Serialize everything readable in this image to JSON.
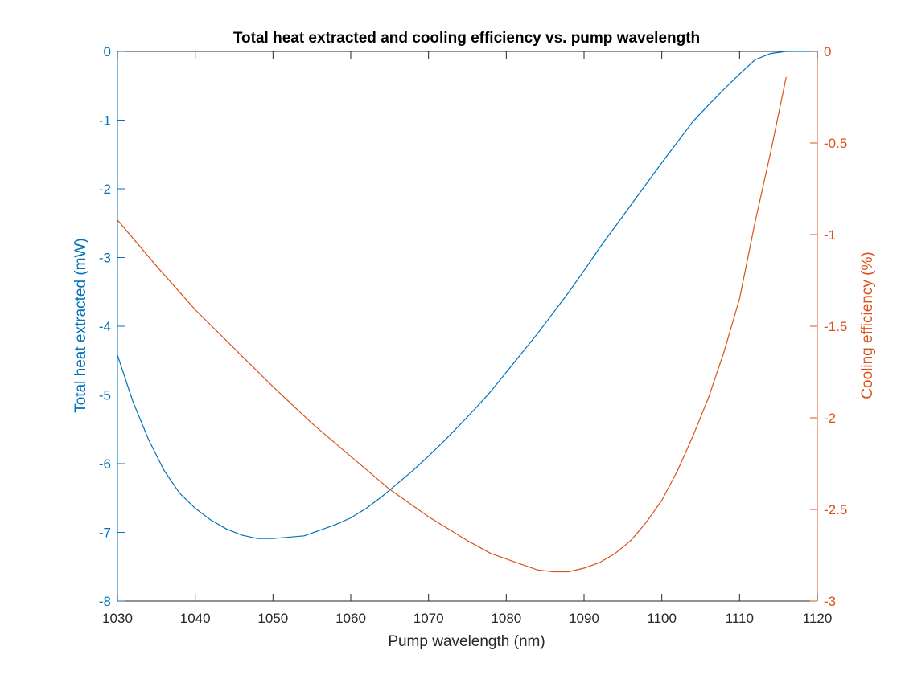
{
  "chart_data": {
    "type": "line",
    "title": "Total heat extracted and cooling efficiency vs. pump wavelength",
    "xlabel": "Pump wavelength (nm)",
    "ylabel_left": "Total heat extracted (mW)",
    "ylabel_right": "Cooling efficiency (%)",
    "xlim": [
      1030,
      1120
    ],
    "ylim_left": [
      -8,
      0
    ],
    "ylim_right": [
      -3,
      0
    ],
    "xticks": [
      1030,
      1040,
      1050,
      1060,
      1070,
      1080,
      1090,
      1100,
      1110,
      1120
    ],
    "yticks_left": [
      0,
      -1,
      -2,
      -3,
      -4,
      -5,
      -6,
      -7,
      -8
    ],
    "yticks_right": [
      0,
      -0.5,
      -1,
      -1.5,
      -2,
      -2.5,
      -3
    ],
    "grid": false,
    "colors": {
      "left": "#0072BD",
      "right": "#D95319",
      "axis": "#262626"
    },
    "series": [
      {
        "axis": "left",
        "x": [
          1030,
          1032,
          1034,
          1036,
          1038,
          1040,
          1042,
          1044,
          1046,
          1048,
          1050,
          1054,
          1058,
          1060,
          1062,
          1064,
          1066,
          1068,
          1070,
          1072,
          1074,
          1076,
          1078,
          1080,
          1082,
          1084,
          1086,
          1088,
          1090,
          1092,
          1094,
          1096,
          1098,
          1100,
          1102,
          1104,
          1106,
          1108,
          1110,
          1112,
          1114,
          1116,
          1120
        ],
        "y": [
          -4.42,
          -5.1,
          -5.65,
          -6.1,
          -6.43,
          -6.65,
          -6.82,
          -6.95,
          -7.04,
          -7.09,
          -7.09,
          -7.05,
          -6.89,
          -6.79,
          -6.65,
          -6.48,
          -6.29,
          -6.1,
          -5.89,
          -5.67,
          -5.44,
          -5.2,
          -4.95,
          -4.67,
          -4.39,
          -4.11,
          -3.81,
          -3.51,
          -3.19,
          -2.86,
          -2.55,
          -2.24,
          -1.93,
          -1.62,
          -1.32,
          -1.02,
          -0.78,
          -0.55,
          -0.33,
          -0.12,
          -0.03,
          0,
          0
        ]
      },
      {
        "axis": "right",
        "x": [
          1030,
          1035,
          1040,
          1045,
          1050,
          1055,
          1060,
          1065,
          1070,
          1075,
          1078,
          1080,
          1082,
          1084,
          1086,
          1088,
          1090,
          1092,
          1094,
          1096,
          1098,
          1100,
          1102,
          1104,
          1106,
          1108,
          1110,
          1112,
          1114,
          1116
        ],
        "y": [
          -0.92,
          -1.17,
          -1.41,
          -1.62,
          -1.83,
          -2.03,
          -2.21,
          -2.39,
          -2.54,
          -2.67,
          -2.74,
          -2.77,
          -2.8,
          -2.83,
          -2.84,
          -2.84,
          -2.82,
          -2.79,
          -2.74,
          -2.67,
          -2.57,
          -2.45,
          -2.29,
          -2.1,
          -1.89,
          -1.64,
          -1.35,
          -0.93,
          -0.55,
          -0.14
        ]
      }
    ]
  }
}
